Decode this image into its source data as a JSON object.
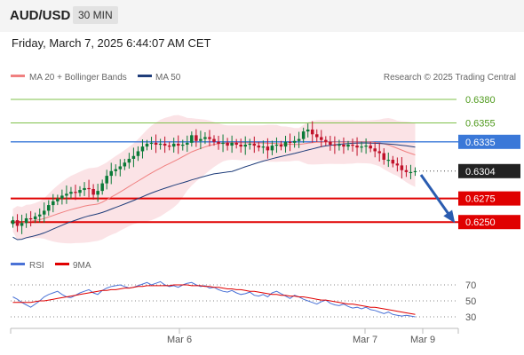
{
  "header": {
    "symbol": "AUD/USD",
    "timeframe": "30 MIN"
  },
  "datetime": "Friday, March 7, 2025 6:44:07 AM CET",
  "legend": {
    "ma20_bb": {
      "label": "MA 20 + Bollinger Bands",
      "color": "#f08080"
    },
    "ma50": {
      "label": "MA 50",
      "color": "#1f3d7a"
    }
  },
  "credit": "Research © 2025 Trading Central",
  "colors": {
    "up": "#0b7a38",
    "down": "#c0112a",
    "band": "#fadadd",
    "resistance": "#7fc04a",
    "pivot": "#3a78d8",
    "support": "#e00000",
    "arrow": "#2a5cb0"
  },
  "chart_data": [
    {
      "type": "candlestick",
      "ylim": [
        0.6222,
        0.6395
      ],
      "levels": [
        {
          "value": 0.638,
          "label": "0.6380",
          "kind": "resistance"
        },
        {
          "value": 0.6355,
          "label": "0.6355",
          "kind": "resistance"
        },
        {
          "value": 0.6335,
          "label": "0.6335",
          "kind": "pivot"
        },
        {
          "value": 0.6304,
          "label": "0.6304",
          "kind": "last"
        },
        {
          "value": 0.6275,
          "label": "0.6275",
          "kind": "support"
        },
        {
          "value": 0.625,
          "label": "0.6250",
          "kind": "support"
        }
      ],
      "x_ticks": [
        "Mar 6",
        "Mar 7",
        "Mar 9"
      ],
      "closes": [
        0.6252,
        0.6246,
        0.6249,
        0.6254,
        0.6253,
        0.6256,
        0.6258,
        0.6262,
        0.6268,
        0.6272,
        0.6275,
        0.6278,
        0.628,
        0.6282,
        0.6281,
        0.6284,
        0.6286,
        0.6285,
        0.6279,
        0.6283,
        0.6291,
        0.6299,
        0.6304,
        0.6306,
        0.6309,
        0.6313,
        0.6317,
        0.632,
        0.6325,
        0.633,
        0.6333,
        0.6334,
        0.6332,
        0.6333,
        0.6331,
        0.633,
        0.6333,
        0.6331,
        0.6332,
        0.6334,
        0.6342,
        0.6336,
        0.6338,
        0.634,
        0.6338,
        0.6335,
        0.6333,
        0.6334,
        0.6331,
        0.6334,
        0.6332,
        0.633,
        0.6332,
        0.6333,
        0.6331,
        0.6329,
        0.633,
        0.6326,
        0.6331,
        0.6332,
        0.633,
        0.6335,
        0.6334,
        0.6336,
        0.6338,
        0.6346,
        0.6348,
        0.6343,
        0.634,
        0.6337,
        0.6335,
        0.6332,
        0.6331,
        0.6332,
        0.633,
        0.6332,
        0.6331,
        0.6329,
        0.633,
        0.6331,
        0.6328,
        0.6325,
        0.6323,
        0.6316,
        0.6316,
        0.6312,
        0.631,
        0.6305,
        0.6303,
        0.6303,
        0.6304
      ]
    },
    {
      "type": "line",
      "title": "RSI",
      "series": [
        {
          "name": "RSI",
          "color": "#4a72d6"
        },
        {
          "name": "9MA",
          "color": "#e00000"
        }
      ],
      "ylim": [
        20,
        80
      ],
      "y_ticks": [
        70,
        50,
        30
      ],
      "rsi": [
        55,
        52,
        48,
        45,
        42,
        46,
        50,
        55,
        58,
        60,
        62,
        58,
        55,
        54,
        57,
        60,
        62,
        64,
        60,
        58,
        63,
        66,
        68,
        69,
        70,
        68,
        66,
        67,
        69,
        71,
        73,
        70,
        72,
        74,
        70,
        68,
        69,
        67,
        70,
        72,
        73,
        70,
        68,
        69,
        66,
        67,
        64,
        62,
        61,
        63,
        60,
        58,
        59,
        61,
        57,
        56,
        58,
        55,
        60,
        62,
        59,
        56,
        53,
        57,
        55,
        52,
        50,
        48,
        46,
        49,
        51,
        47,
        45,
        44,
        46,
        43,
        41,
        42,
        40,
        42,
        39,
        38,
        36,
        34,
        36,
        33,
        32,
        31,
        32,
        31,
        30
      ],
      "ma9": [
        48,
        48,
        48,
        48,
        48,
        49,
        50,
        50,
        51,
        52,
        53,
        54,
        55,
        56,
        57,
        58,
        59,
        60,
        61,
        62,
        63,
        63,
        64,
        64,
        65,
        66,
        66,
        67,
        68,
        68,
        69,
        69,
        69,
        69,
        69,
        69,
        70,
        70,
        70,
        70,
        69,
        69,
        69,
        68,
        68,
        67,
        67,
        66,
        65,
        65,
        64,
        64,
        63,
        62,
        62,
        61,
        60,
        59,
        58,
        58,
        57,
        57,
        56,
        56,
        55,
        55,
        54,
        53,
        52,
        51,
        51,
        50,
        49,
        48,
        47,
        46,
        46,
        45,
        44,
        43,
        42,
        42,
        41,
        40,
        39,
        38,
        37,
        36,
        35,
        34,
        33
      ]
    }
  ]
}
